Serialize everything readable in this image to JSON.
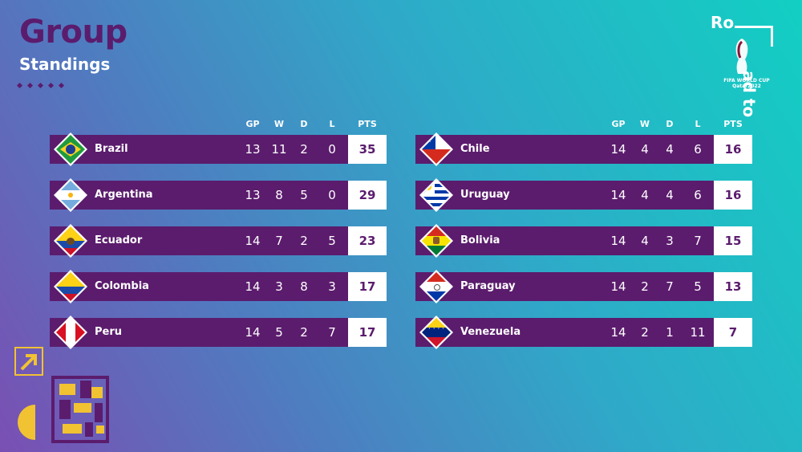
{
  "header": {
    "title": "Group",
    "subtitle": "Standings"
  },
  "logo": {
    "ro": "Ro",
    "adto": "ad to",
    "event_line1": "FIFA WORLD CUP",
    "event_line2": "Qatar2022"
  },
  "columns": [
    "GP",
    "W",
    "D",
    "L",
    "PTS"
  ],
  "left_table": [
    {
      "team": "Brazil",
      "flag": "brazil-flag-icon",
      "gp": "13",
      "w": "11",
      "d": "2",
      "l": "0",
      "pts": "35"
    },
    {
      "team": "Argentina",
      "flag": "argentina-flag-icon",
      "gp": "13",
      "w": "8",
      "d": "5",
      "l": "0",
      "pts": "29"
    },
    {
      "team": "Ecuador",
      "flag": "ecuador-flag-icon",
      "gp": "14",
      "w": "7",
      "d": "2",
      "l": "5",
      "pts": "23"
    },
    {
      "team": "Colombia",
      "flag": "colombia-flag-icon",
      "gp": "14",
      "w": "3",
      "d": "8",
      "l": "3",
      "pts": "17"
    },
    {
      "team": "Peru",
      "flag": "peru-flag-icon",
      "gp": "14",
      "w": "5",
      "d": "2",
      "l": "7",
      "pts": "17"
    }
  ],
  "right_table": [
    {
      "team": "Chile",
      "flag": "chile-flag-icon",
      "gp": "14",
      "w": "4",
      "d": "4",
      "l": "6",
      "pts": "16"
    },
    {
      "team": "Uruguay",
      "flag": "uruguay-flag-icon",
      "gp": "14",
      "w": "4",
      "d": "4",
      "l": "6",
      "pts": "16"
    },
    {
      "team": "Bolivia",
      "flag": "bolivia-flag-icon",
      "gp": "14",
      "w": "4",
      "d": "3",
      "l": "7",
      "pts": "15"
    },
    {
      "team": "Paraguay",
      "flag": "paraguay-flag-icon",
      "gp": "14",
      "w": "2",
      "d": "7",
      "l": "5",
      "pts": "13"
    },
    {
      "team": "Venezuela",
      "flag": "venezuela-flag-icon",
      "gp": "14",
      "w": "2",
      "d": "1",
      "l": "11",
      "pts": "7"
    }
  ],
  "colors": {
    "row_bg": "#5b1c6d",
    "pts_bg": "#ffffff",
    "accent": "#f1c232"
  }
}
